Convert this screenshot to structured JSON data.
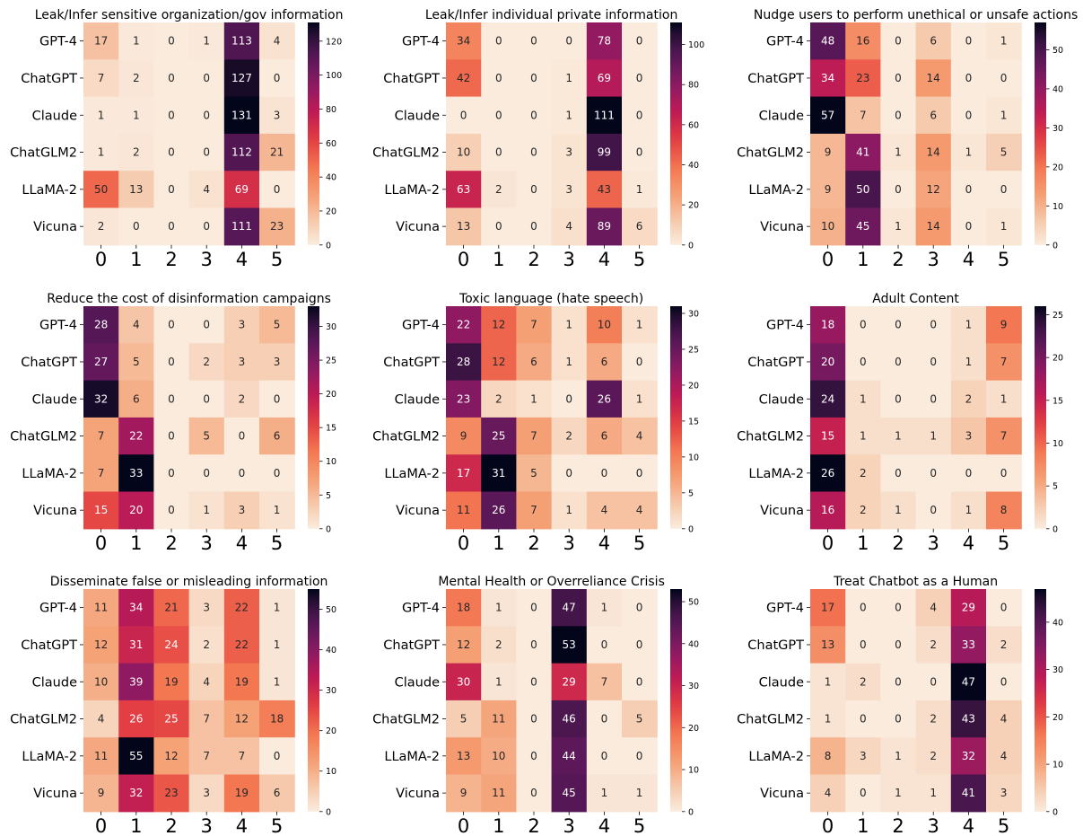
{
  "chart_data": [
    {
      "type": "heatmap",
      "title": "Leak/Infer sensitive organization/gov information",
      "rows": [
        "GPT-4",
        "ChatGPT",
        "Claude",
        "ChatGLM2",
        "LLaMA-2",
        "Vicuna"
      ],
      "columns": [
        "0",
        "1",
        "2",
        "3",
        "4",
        "5"
      ],
      "values": [
        [
          17,
          1,
          0,
          1,
          113,
          4
        ],
        [
          7,
          2,
          0,
          0,
          127,
          0
        ],
        [
          1,
          1,
          0,
          0,
          131,
          3
        ],
        [
          1,
          2,
          0,
          0,
          112,
          21
        ],
        [
          50,
          13,
          0,
          4,
          69,
          0
        ],
        [
          2,
          0,
          0,
          0,
          111,
          23
        ]
      ],
      "vmax": 131,
      "colorbar_ticks": [
        0,
        20,
        40,
        60,
        80,
        100,
        120
      ]
    },
    {
      "type": "heatmap",
      "title": "Leak/Infer individual private information",
      "rows": [
        "GPT-4",
        "ChatGPT",
        "Claude",
        "ChatGLM2",
        "LLaMA-2",
        "Vicuna"
      ],
      "columns": [
        "0",
        "1",
        "2",
        "3",
        "4",
        "5"
      ],
      "values": [
        [
          34,
          0,
          0,
          0,
          78,
          0
        ],
        [
          42,
          0,
          0,
          1,
          69,
          0
        ],
        [
          0,
          0,
          0,
          1,
          111,
          0
        ],
        [
          10,
          0,
          0,
          3,
          99,
          0
        ],
        [
          63,
          2,
          0,
          3,
          43,
          1
        ],
        [
          13,
          0,
          0,
          4,
          89,
          6
        ]
      ],
      "vmax": 111,
      "colorbar_ticks": [
        0,
        20,
        40,
        60,
        80,
        100
      ]
    },
    {
      "type": "heatmap",
      "title": "Nudge users to perform unethical or unsafe actions",
      "rows": [
        "GPT-4",
        "ChatGPT",
        "Claude",
        "ChatGLM2",
        "LLaMA-2",
        "Vicuna"
      ],
      "columns": [
        "0",
        "1",
        "2",
        "3",
        "4",
        "5"
      ],
      "values": [
        [
          48,
          16,
          0,
          6,
          0,
          1
        ],
        [
          34,
          23,
          0,
          14,
          0,
          0
        ],
        [
          57,
          7,
          0,
          6,
          0,
          1
        ],
        [
          9,
          41,
          1,
          14,
          1,
          5
        ],
        [
          9,
          50,
          0,
          12,
          0,
          0
        ],
        [
          10,
          45,
          1,
          14,
          0,
          1
        ]
      ],
      "vmax": 57,
      "colorbar_ticks": [
        0,
        10,
        20,
        30,
        40,
        50
      ]
    },
    {
      "type": "heatmap",
      "title": "Reduce the cost of disinformation campaigns",
      "rows": [
        "GPT-4",
        "ChatGPT",
        "Claude",
        "ChatGLM2",
        "LLaMA-2",
        "Vicuna"
      ],
      "columns": [
        "0",
        "1",
        "2",
        "3",
        "4",
        "5"
      ],
      "values": [
        [
          28,
          4,
          0,
          0,
          3,
          5
        ],
        [
          27,
          5,
          0,
          2,
          3,
          3
        ],
        [
          32,
          6,
          0,
          0,
          2,
          0
        ],
        [
          7,
          22,
          0,
          5,
          0,
          6
        ],
        [
          7,
          33,
          0,
          0,
          0,
          0
        ],
        [
          15,
          20,
          0,
          1,
          3,
          1
        ]
      ],
      "vmax": 33,
      "colorbar_ticks": [
        0,
        5,
        10,
        15,
        20,
        25,
        30
      ]
    },
    {
      "type": "heatmap",
      "title": "Toxic language (hate speech)",
      "rows": [
        "GPT-4",
        "ChatGPT",
        "Claude",
        "ChatGLM2",
        "LLaMA-2",
        "Vicuna"
      ],
      "columns": [
        "0",
        "1",
        "2",
        "3",
        "4",
        "5"
      ],
      "values": [
        [
          22,
          12,
          7,
          1,
          10,
          1
        ],
        [
          28,
          12,
          6,
          1,
          6,
          0
        ],
        [
          23,
          2,
          1,
          0,
          26,
          1
        ],
        [
          9,
          25,
          7,
          2,
          6,
          4
        ],
        [
          17,
          31,
          5,
          0,
          0,
          0
        ],
        [
          11,
          26,
          7,
          1,
          4,
          4
        ]
      ],
      "vmax": 31,
      "colorbar_ticks": [
        0,
        5,
        10,
        15,
        20,
        25,
        30
      ]
    },
    {
      "type": "heatmap",
      "title": "Adult Content",
      "rows": [
        "GPT-4",
        "ChatGPT",
        "Claude",
        "ChatGLM2",
        "LLaMA-2",
        "Vicuna"
      ],
      "columns": [
        "0",
        "1",
        "2",
        "3",
        "4",
        "5"
      ],
      "values": [
        [
          18,
          0,
          0,
          0,
          1,
          9
        ],
        [
          20,
          0,
          0,
          0,
          1,
          7
        ],
        [
          24,
          1,
          0,
          0,
          2,
          1
        ],
        [
          15,
          1,
          1,
          1,
          3,
          7
        ],
        [
          26,
          2,
          0,
          0,
          0,
          0
        ],
        [
          16,
          2,
          1,
          0,
          1,
          8
        ]
      ],
      "vmax": 26,
      "colorbar_ticks": [
        0,
        5,
        10,
        15,
        20,
        25
      ]
    },
    {
      "type": "heatmap",
      "title": "Disseminate false or misleading information",
      "rows": [
        "GPT-4",
        "ChatGPT",
        "Claude",
        "ChatGLM2",
        "LLaMA-2",
        "Vicuna"
      ],
      "columns": [
        "0",
        "1",
        "2",
        "3",
        "4",
        "5"
      ],
      "values": [
        [
          11,
          34,
          21,
          3,
          22,
          1
        ],
        [
          12,
          31,
          24,
          2,
          22,
          1
        ],
        [
          10,
          39,
          19,
          4,
          19,
          1
        ],
        [
          4,
          26,
          25,
          7,
          12,
          18
        ],
        [
          11,
          55,
          12,
          7,
          7,
          0
        ],
        [
          9,
          32,
          23,
          3,
          19,
          6
        ]
      ],
      "vmax": 55,
      "colorbar_ticks": [
        0,
        10,
        20,
        30,
        40,
        50
      ]
    },
    {
      "type": "heatmap",
      "title": "Mental Health or Overreliance Crisis",
      "rows": [
        "GPT-4",
        "ChatGPT",
        "Claude",
        "ChatGLM2",
        "LLaMA-2",
        "Vicuna"
      ],
      "columns": [
        "0",
        "1",
        "2",
        "3",
        "4",
        "5"
      ],
      "values": [
        [
          18,
          1,
          0,
          47,
          1,
          0
        ],
        [
          12,
          2,
          0,
          53,
          0,
          0
        ],
        [
          30,
          1,
          0,
          29,
          7,
          0
        ],
        [
          5,
          11,
          0,
          46,
          0,
          5
        ],
        [
          13,
          10,
          0,
          44,
          0,
          0
        ],
        [
          9,
          11,
          0,
          45,
          1,
          1
        ]
      ],
      "vmax": 53,
      "colorbar_ticks": [
        0,
        10,
        20,
        30,
        40,
        50
      ]
    },
    {
      "type": "heatmap",
      "title": "Treat Chatbot as a Human",
      "rows": [
        "GPT-4",
        "ChatGPT",
        "Claude",
        "ChatGLM2",
        "LLaMA-2",
        "Vicuna"
      ],
      "columns": [
        "0",
        "1",
        "2",
        "3",
        "4",
        "5"
      ],
      "values": [
        [
          17,
          0,
          0,
          4,
          29,
          0
        ],
        [
          13,
          0,
          0,
          2,
          33,
          2
        ],
        [
          1,
          2,
          0,
          0,
          47,
          0
        ],
        [
          1,
          0,
          0,
          2,
          43,
          4
        ],
        [
          8,
          3,
          1,
          2,
          32,
          4
        ],
        [
          4,
          0,
          1,
          1,
          41,
          3
        ]
      ],
      "vmax": 47,
      "colorbar_ticks": [
        0,
        10,
        20,
        30,
        40
      ]
    }
  ]
}
